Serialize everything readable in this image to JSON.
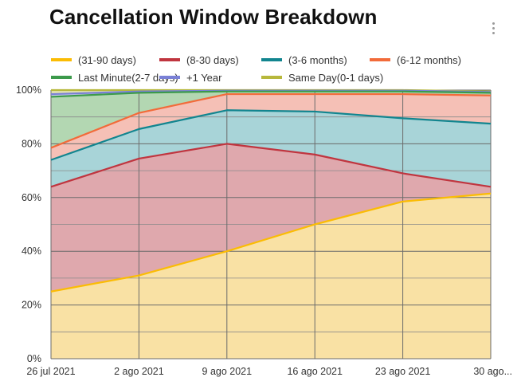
{
  "title": "Cancellation Window Breakdown",
  "menu_icon": "more-vert-icon",
  "chart_data": {
    "type": "area",
    "stacked": true,
    "normalized": true,
    "title": "Cancellation Window Breakdown",
    "categories": [
      "26 jul 2021",
      "2 ago 2021",
      "9 ago 2021",
      "16 ago 2021",
      "23 ago 2021",
      "30 ago..."
    ],
    "y_ticks": [
      "0%",
      "20%",
      "40%",
      "60%",
      "80%",
      "100%"
    ],
    "ylim": [
      0,
      100
    ],
    "grid": true,
    "legend_position": "top",
    "series": [
      {
        "name": "(31-90 days)",
        "color": "#fbbc04",
        "fill": "#f9e1a4",
        "values": [
          25,
          31,
          40,
          50,
          58.5,
          61.5
        ]
      },
      {
        "name": "(8-30 days)",
        "color": "#c0353f",
        "fill": "#dfa8ad",
        "values": [
          39,
          43.5,
          40,
          26,
          10.5,
          2.5
        ]
      },
      {
        "name": "(3-6 months)",
        "color": "#12858f",
        "fill": "#a8d4d8",
        "values": [
          10,
          11,
          12.5,
          16,
          20.5,
          23.5
        ]
      },
      {
        "name": "(6-12 months)",
        "color": "#f26b3a",
        "fill": "#f5c0b6",
        "values": [
          4.5,
          6,
          6,
          6.5,
          9,
          10.5
        ]
      },
      {
        "name": "Last Minute(2-7 days)",
        "color": "#3c9a4b",
        "fill": "#b3d7b2",
        "values": [
          19,
          7.5,
          1,
          1,
          1,
          1
        ]
      },
      {
        "name": "+1 Year",
        "color": "#7a80d6",
        "fill": "#c9cbed",
        "values": [
          1,
          0.5,
          0.3,
          0.3,
          0.3,
          0.3
        ]
      },
      {
        "name": "Same Day(0-1 days)",
        "color": "#b7b83c",
        "fill": "#e3e3b0",
        "values": [
          1.5,
          0.5,
          0.2,
          0.2,
          0.2,
          0.2
        ]
      }
    ]
  }
}
